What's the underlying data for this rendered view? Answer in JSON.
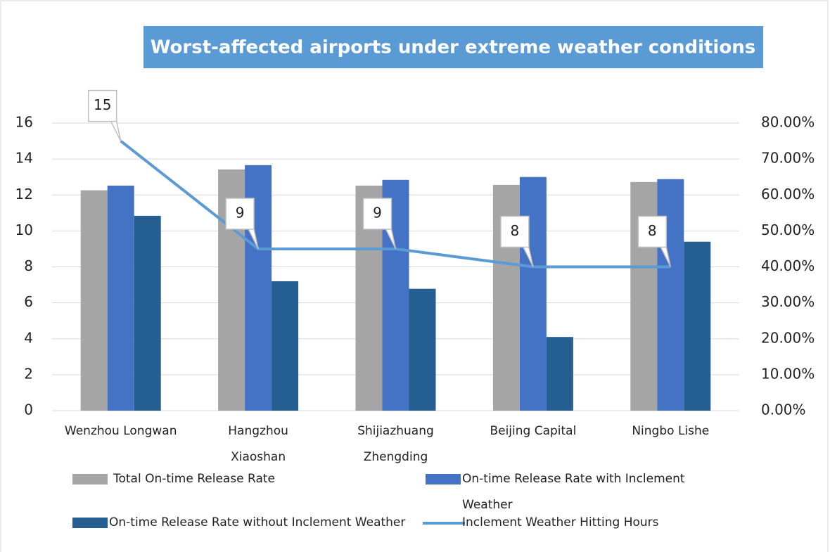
{
  "chart_data": {
    "type": "bar+line",
    "title": "Worst-affected airports under extreme weather conditions",
    "categories": [
      "Wenzhou Longwan",
      "Hangzhou Xiaoshan",
      "Shijiazhuang Zhengding",
      "Beijing Capital",
      "Ningbo Lishe"
    ],
    "series": [
      {
        "name": "Total On-time Release Rate",
        "type": "bar",
        "axis": "y2",
        "color": "#a5a5a5",
        "values": [
          61.3,
          67.1,
          62.6,
          62.8,
          63.6
        ]
      },
      {
        "name": "On-time Release Rate with Inclement Weather",
        "type": "bar",
        "axis": "y2",
        "color": "#4472c4",
        "values": [
          62.6,
          68.3,
          64.2,
          65.0,
          64.4
        ]
      },
      {
        "name": "On-time Release Rate without Inclement Weather",
        "type": "bar",
        "axis": "y2",
        "color": "#255e91",
        "values": [
          54.2,
          36.0,
          33.9,
          20.5,
          47.0
        ]
      },
      {
        "name": "Inclement Weather Hitting Hours",
        "type": "line",
        "axis": "y",
        "color": "#5b9bd5",
        "values": [
          15,
          9,
          9,
          8,
          8
        ]
      }
    ],
    "ylim": [
      0,
      16
    ],
    "yticks": [
      0,
      2,
      4,
      6,
      8,
      10,
      12,
      14,
      16
    ],
    "y2lim": [
      0,
      80
    ],
    "y2ticks": [
      {
        "value": 0,
        "label": "0.00%"
      },
      {
        "value": 10,
        "label": "10.00%"
      },
      {
        "value": 20,
        "label": "20.00%"
      },
      {
        "value": 30,
        "label": "30.00%"
      },
      {
        "value": 40,
        "label": "40.00%"
      },
      {
        "value": 50,
        "label": "50.00%"
      },
      {
        "value": 60,
        "label": "60.00%"
      },
      {
        "value": 70,
        "label": "70.00%"
      },
      {
        "value": 80,
        "label": "80.00%"
      }
    ],
    "grid": true
  }
}
